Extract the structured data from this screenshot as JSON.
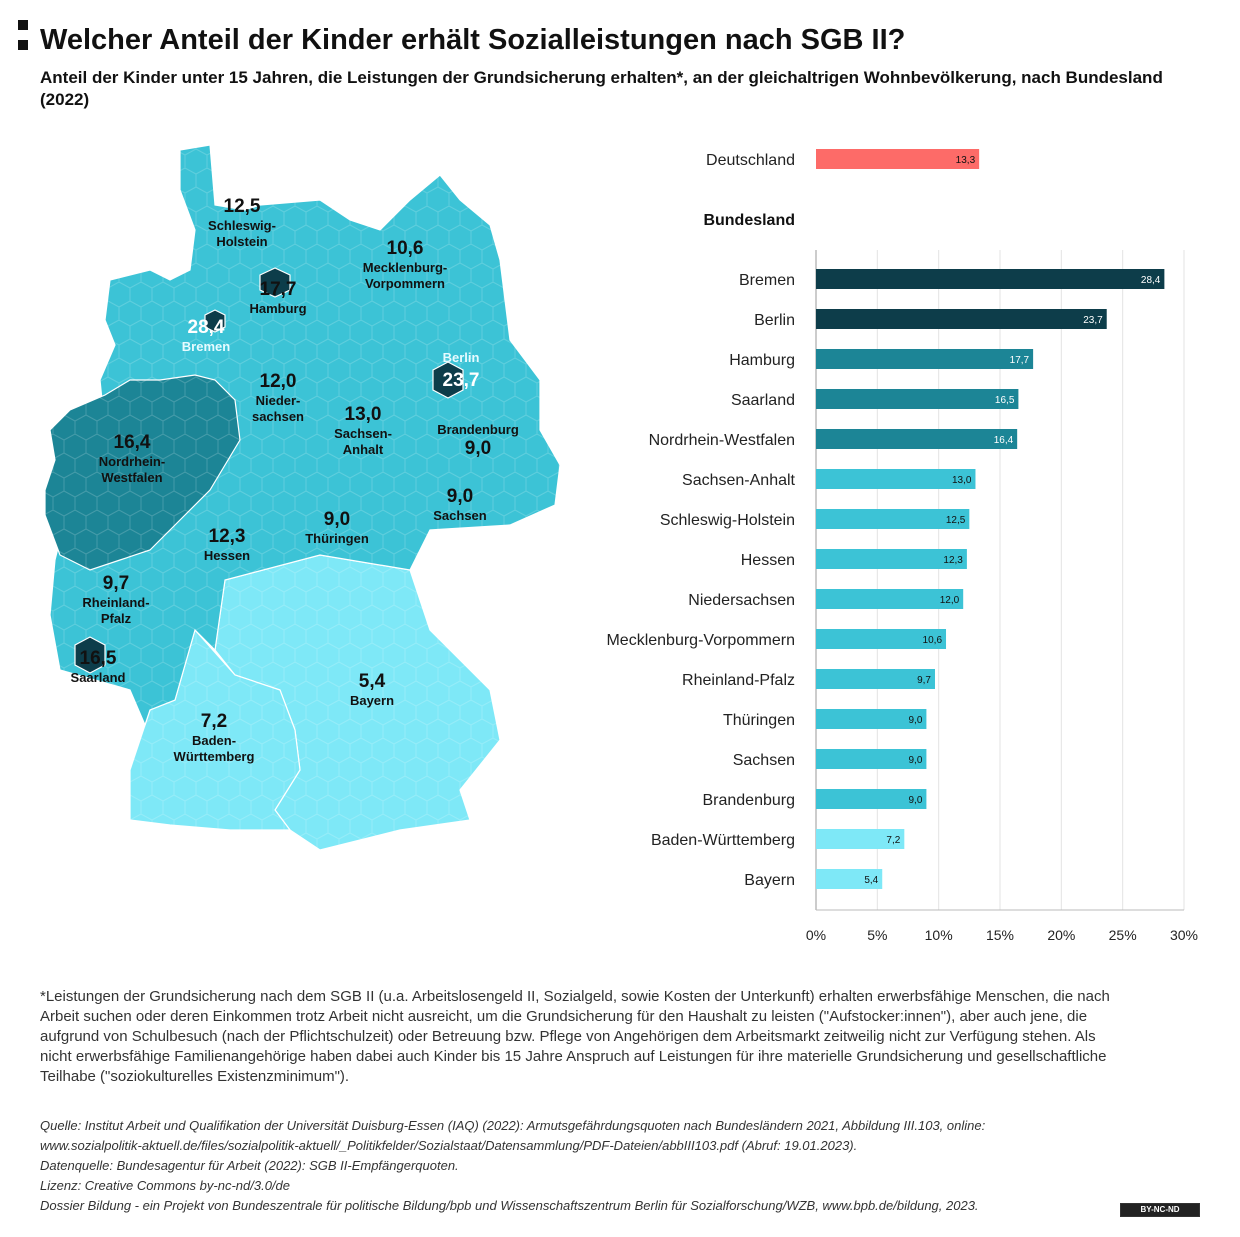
{
  "header": {
    "title": "Welcher Anteil der Kinder erhält Sozialleistungen nach SGB II?",
    "subtitle": "Anteil der Kinder unter 15 Jahren, die Leistungen der Grundsicherung erhalten*, an der gleichaltrigen Wohnbevölkerung, nach Bundesland (2022)"
  },
  "colors": {
    "deutschland": "#fd6b68",
    "very_high": "#0d3d4a",
    "high": "#1c8596",
    "mid": "#3cc3d6",
    "low": "#7ee8f7",
    "hex_stroke": "#2aa9bc"
  },
  "map": {
    "states": [
      {
        "name": "Schleswig-Holstein",
        "value": "12,5"
      },
      {
        "name": "Mecklenburg-Vorpommern",
        "value": "10,6"
      },
      {
        "name": "Hamburg",
        "value": "17,7"
      },
      {
        "name": "Bremen",
        "value": "28,4"
      },
      {
        "name": "Berlin",
        "value": "23,7"
      },
      {
        "name": "Niedersachsen",
        "value": "12,0"
      },
      {
        "name": "Sachsen-Anhalt",
        "value": "13,0"
      },
      {
        "name": "Brandenburg",
        "value": "9,0"
      },
      {
        "name": "Nordrhein-Westfalen",
        "value": "16,4"
      },
      {
        "name": "Sachsen",
        "value": "9,0"
      },
      {
        "name": "Hessen",
        "value": "12,3"
      },
      {
        "name": "Thüringen",
        "value": "9,0"
      },
      {
        "name": "Rheinland-Pfalz",
        "value": "9,7"
      },
      {
        "name": "Saarland",
        "value": "16,5"
      },
      {
        "name": "Bayern",
        "value": "5,4"
      },
      {
        "name": "Baden-Württemberg",
        "value": "7,2"
      }
    ],
    "label_lines": {
      "sh": [
        "Schleswig-",
        "Holstein"
      ],
      "mv": [
        "Mecklenburg-",
        "Vorpommern"
      ],
      "ni": [
        "Nieder-",
        "sachsen"
      ],
      "st": [
        "Sachsen-",
        "Anhalt"
      ],
      "nw": [
        "Nordrhein-",
        "Westfalen"
      ],
      "rp": [
        "Rheinland-",
        "Pfalz"
      ],
      "bw": [
        "Baden-",
        "Württemberg"
      ]
    }
  },
  "chart_data": {
    "type": "bar",
    "orientation": "horizontal",
    "national": {
      "label": "Deutschland",
      "value": 13.3,
      "display": "13,3"
    },
    "group_label": "Bundesland",
    "categories": [
      "Bremen",
      "Berlin",
      "Hamburg",
      "Saarland",
      "Nordrhein-Westfalen",
      "Sachsen-Anhalt",
      "Schleswig-Holstein",
      "Hessen",
      "Niedersachsen",
      "Mecklenburg-Vorpommern",
      "Rheinland-Pfalz",
      "Thüringen",
      "Sachsen",
      "Brandenburg",
      "Baden-Württemberg",
      "Bayern"
    ],
    "values": [
      28.4,
      23.7,
      17.7,
      16.5,
      16.4,
      13.0,
      12.5,
      12.3,
      12.0,
      10.6,
      9.7,
      9.0,
      9.0,
      9.0,
      7.2,
      5.4
    ],
    "value_labels": [
      "28,4",
      "23,7",
      "17,7",
      "16,5",
      "16,4",
      "13,0",
      "12,5",
      "12,3",
      "12,0",
      "10,6",
      "9,7",
      "9,0",
      "9,0",
      "9,0",
      "7,2",
      "5,4"
    ],
    "xlim": [
      0,
      30
    ],
    "x_ticks": [
      0,
      5,
      10,
      15,
      20,
      25,
      30
    ],
    "x_tick_labels": [
      "0%",
      "5%",
      "10%",
      "15%",
      "20%",
      "25%",
      "30%"
    ],
    "grid": "vertical"
  },
  "footnote": "*Leistungen der Grundsicherung nach dem SGB II (u.a. Arbeitslosengeld II, Sozialgeld, sowie Kosten der Unterkunft) erhalten erwerbsfähige Menschen, die nach Arbeit suchen oder deren Einkommen trotz Arbeit nicht ausreicht, um die Grundsicherung für den Haushalt zu leisten (\"Aufstocker:innen\"), aber auch jene, die aufgrund von Schulbesuch (nach der Pflichtschulzeit) oder Betreuung bzw. Pflege von Angehörigen dem Arbeitsmarkt zeitweilig nicht zur Verfügung stehen. Als nicht erwerbsfähige Familienangehörige haben dabei auch Kinder bis 15 Jahre Anspruch auf Leistungen für ihre materielle Grundsicherung und gesellschaftliche Teilhabe (\"soziokulturelles Existenzminimum\").",
  "source": {
    "line1": "Quelle: Institut Arbeit und Qualifikation der Universität Duisburg-Essen (IAQ) (2022): Armutsgefährdungsquoten nach Bundesländern 2021, Abbildung III.103, online:",
    "line2": "www.sozialpolitik-aktuell.de/files/sozialpolitik-aktuell/_Politikfelder/Sozialstaat/Datensammlung/PDF-Dateien/abbIII103.pdf (Abruf: 19.01.2023).",
    "line3": "Datenquelle: Bundesagentur für Arbeit (2022): SGB II-Empfängerquoten.",
    "line4": "Lizenz: Creative Commons by-nc-nd/3.0/de",
    "line5": "Dossier Bildung - ein Projekt von Bundeszentrale für politische Bildung/bpb und Wissenschaftszentrum Berlin für Sozialforschung/WZB, www.bpb.de/bildung, 2023."
  },
  "license_badge": "BY-NC-ND"
}
